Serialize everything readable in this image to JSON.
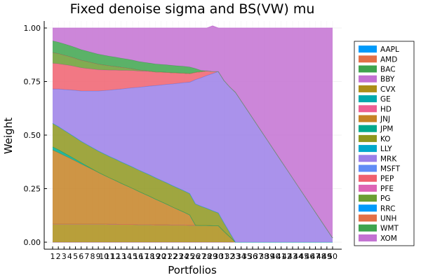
{
  "chart_data": {
    "type": "area",
    "stacked": true,
    "title": "Fixed denoise sigma and BS(VW) mu",
    "xlabel": "Portfolios",
    "ylabel": "Weight",
    "ylim": [
      0,
      1
    ],
    "yticks": [
      0.0,
      0.25,
      0.5,
      0.75,
      1.0
    ],
    "ytick_labels": [
      "0.00",
      "0.25",
      "0.50",
      "0.75",
      "1.00"
    ],
    "x": [
      1,
      2,
      3,
      4,
      5,
      6,
      7,
      8,
      9,
      10,
      11,
      12,
      13,
      14,
      15,
      16,
      17,
      18,
      19,
      20,
      21,
      22,
      23,
      24,
      25,
      26,
      27,
      28,
      29,
      30,
      31,
      32,
      33,
      34,
      35,
      36,
      37,
      38,
      39,
      40,
      41,
      42,
      43,
      44,
      45,
      46,
      47,
      48,
      49,
      50
    ],
    "grid": true,
    "legend_position": "right",
    "series": [
      {
        "name": "AAPL",
        "color": "#009AFA",
        "values": [
          0,
          0,
          0,
          0,
          0,
          0,
          0,
          0,
          0,
          0,
          0,
          0,
          0,
          0,
          0,
          0,
          0,
          0,
          0,
          0,
          0,
          0,
          0,
          0,
          0,
          0,
          0,
          0,
          0,
          0,
          0,
          0,
          0,
          0,
          0,
          0,
          0,
          0,
          0,
          0,
          0,
          0,
          0,
          0,
          0,
          0,
          0,
          0,
          0,
          0
        ]
      },
      {
        "name": "AMD",
        "color": "#E36F47",
        "values": [
          0,
          0,
          0,
          0,
          0,
          0,
          0,
          0,
          0,
          0,
          0,
          0,
          0,
          0,
          0,
          0,
          0,
          0,
          0,
          0,
          0,
          0,
          0,
          0,
          0,
          0,
          0,
          0,
          0,
          0,
          0,
          0,
          0,
          0,
          0,
          0,
          0,
          0,
          0,
          0,
          0,
          0,
          0,
          0,
          0,
          0,
          0,
          0,
          0,
          0
        ]
      },
      {
        "name": "BAC",
        "color": "#3EA44E",
        "values": [
          0,
          0,
          0,
          0,
          0,
          0,
          0,
          0,
          0,
          0,
          0,
          0,
          0,
          0,
          0,
          0,
          0,
          0,
          0,
          0,
          0,
          0,
          0,
          0,
          0,
          0,
          0,
          0,
          0,
          0,
          0,
          0,
          0,
          0,
          0,
          0,
          0,
          0,
          0,
          0,
          0,
          0,
          0,
          0,
          0,
          0,
          0,
          0,
          0,
          0
        ]
      },
      {
        "name": "BBY",
        "color": "#C371D2",
        "values": [
          0,
          0,
          0,
          0,
          0,
          0,
          0,
          0,
          0,
          0,
          0,
          0,
          0,
          0,
          0,
          0,
          0,
          0,
          0,
          0,
          0,
          0,
          0,
          0,
          0,
          0,
          0,
          0,
          0,
          0,
          0,
          0,
          0,
          0,
          0,
          0,
          0,
          0,
          0,
          0,
          0,
          0,
          0,
          0,
          0,
          0,
          0,
          0,
          0,
          0
        ]
      },
      {
        "name": "CVX",
        "color": "#AC8E18",
        "values": [
          0.085,
          0.085,
          0.085,
          0.085,
          0.085,
          0.085,
          0.085,
          0.085,
          0.085,
          0.085,
          0.084,
          0.084,
          0.083,
          0.083,
          0.083,
          0.082,
          0.082,
          0.082,
          0.081,
          0.081,
          0.081,
          0.08,
          0.08,
          0.08,
          0.079,
          0.079,
          0.078,
          0.078,
          0.077,
          0.077,
          0.05,
          0.025,
          0,
          0,
          0,
          0,
          0,
          0,
          0,
          0,
          0,
          0,
          0,
          0,
          0,
          0,
          0,
          0,
          0,
          0
        ]
      },
      {
        "name": "GE",
        "color": "#00A9AD",
        "values": [
          0,
          0,
          0,
          0,
          0,
          0,
          0,
          0,
          0,
          0,
          0,
          0,
          0,
          0,
          0,
          0,
          0,
          0,
          0,
          0,
          0,
          0,
          0,
          0,
          0,
          0,
          0,
          0,
          0,
          0,
          0,
          0,
          0,
          0,
          0,
          0,
          0,
          0,
          0,
          0,
          0,
          0,
          0,
          0,
          0,
          0,
          0,
          0,
          0,
          0
        ]
      },
      {
        "name": "HD",
        "color": "#ED5E93",
        "values": [
          0,
          0,
          0,
          0,
          0,
          0,
          0,
          0,
          0,
          0,
          0,
          0,
          0,
          0,
          0,
          0,
          0,
          0,
          0,
          0,
          0,
          0,
          0,
          0,
          0,
          0,
          0,
          0,
          0,
          0,
          0,
          0,
          0,
          0,
          0,
          0,
          0,
          0,
          0,
          0,
          0,
          0,
          0,
          0,
          0,
          0,
          0,
          0,
          0,
          0
        ]
      },
      {
        "name": "JNJ",
        "color": "#C68225",
        "values": [
          0.345,
          0.333,
          0.32,
          0.307,
          0.294,
          0.28,
          0.267,
          0.254,
          0.241,
          0.228,
          0.216,
          0.204,
          0.192,
          0.18,
          0.168,
          0.156,
          0.144,
          0.132,
          0.12,
          0.108,
          0.096,
          0.084,
          0.072,
          0.06,
          0.048,
          0,
          0,
          0,
          0,
          0,
          0,
          0,
          0,
          0,
          0,
          0,
          0,
          0,
          0,
          0,
          0,
          0,
          0,
          0,
          0,
          0,
          0,
          0,
          0,
          0
        ]
      },
      {
        "name": "JPM",
        "color": "#00A98D",
        "values": [
          0.015,
          0.014,
          0.012,
          0.01,
          0.008,
          0.006,
          0.004,
          0.002,
          0,
          0,
          0,
          0,
          0,
          0,
          0,
          0,
          0,
          0,
          0,
          0,
          0,
          0,
          0,
          0,
          0,
          0,
          0,
          0,
          0,
          0,
          0,
          0,
          0,
          0,
          0,
          0,
          0,
          0,
          0,
          0,
          0,
          0,
          0,
          0,
          0,
          0,
          0,
          0,
          0,
          0
        ]
      },
      {
        "name": "KO",
        "color": "#8E971E",
        "values": [
          0.11,
          0.108,
          0.106,
          0.104,
          0.102,
          0.1,
          0.1,
          0.1,
          0.1,
          0.1,
          0.1,
          0.1,
          0.1,
          0.1,
          0.1,
          0.1,
          0.1,
          0.1,
          0.1,
          0.1,
          0.1,
          0.1,
          0.1,
          0.1,
          0.1,
          0.1,
          0.09,
          0.08,
          0.07,
          0.06,
          0.04,
          0.02,
          0,
          0,
          0,
          0,
          0,
          0,
          0,
          0,
          0,
          0,
          0,
          0,
          0,
          0,
          0,
          0,
          0,
          0
        ]
      },
      {
        "name": "LLY",
        "color": "#00A8CB",
        "values": [
          0,
          0,
          0,
          0,
          0,
          0,
          0,
          0,
          0,
          0,
          0,
          0,
          0,
          0,
          0,
          0,
          0,
          0,
          0,
          0,
          0,
          0,
          0,
          0,
          0,
          0,
          0,
          0,
          0,
          0,
          0,
          0,
          0,
          0,
          0,
          0,
          0,
          0,
          0,
          0,
          0,
          0,
          0,
          0,
          0,
          0,
          0,
          0,
          0,
          0
        ]
      },
      {
        "name": "MRK",
        "color": "#9B7FE8",
        "values": [
          0.16,
          0.175,
          0.19,
          0.205,
          0.22,
          0.235,
          0.25,
          0.265,
          0.28,
          0.295,
          0.31,
          0.325,
          0.34,
          0.355,
          0.37,
          0.385,
          0.4,
          0.415,
          0.43,
          0.445,
          0.46,
          0.475,
          0.49,
          0.505,
          0.52,
          0.58,
          0.6,
          0.62,
          0.64,
          0.66,
          0.665,
          0.68,
          0.7,
          0.66,
          0.62,
          0.58,
          0.54,
          0.5,
          0.46,
          0.42,
          0.38,
          0.34,
          0.3,
          0.26,
          0.22,
          0.18,
          0.14,
          0.1,
          0.06,
          0.02
        ]
      },
      {
        "name": "MSFT",
        "color": "#608CF6",
        "values": [
          0,
          0,
          0,
          0,
          0,
          0,
          0,
          0,
          0,
          0,
          0,
          0,
          0,
          0,
          0,
          0,
          0,
          0,
          0,
          0,
          0,
          0,
          0,
          0,
          0,
          0,
          0,
          0,
          0,
          0,
          0,
          0,
          0,
          0,
          0,
          0,
          0,
          0,
          0,
          0,
          0,
          0,
          0,
          0,
          0,
          0,
          0,
          0,
          0,
          0
        ]
      },
      {
        "name": "PEP",
        "color": "#F0606F",
        "values": [
          0.12,
          0.118,
          0.116,
          0.114,
          0.111,
          0.108,
          0.105,
          0.102,
          0.099,
          0.096,
          0.093,
          0.09,
          0.087,
          0.084,
          0.08,
          0.076,
          0.072,
          0.068,
          0.064,
          0.06,
          0.056,
          0.052,
          0.048,
          0.044,
          0.04,
          0.034,
          0.028,
          0.022,
          0.01,
          0,
          0,
          0,
          0,
          0,
          0,
          0,
          0,
          0,
          0,
          0,
          0,
          0,
          0,
          0,
          0,
          0,
          0,
          0,
          0,
          0
        ]
      },
      {
        "name": "PFE",
        "color": "#DD64B5",
        "values": [
          0,
          0,
          0,
          0,
          0,
          0,
          0,
          0,
          0,
          0,
          0,
          0,
          0,
          0,
          0,
          0,
          0,
          0,
          0,
          0,
          0,
          0,
          0,
          0,
          0,
          0,
          0,
          0,
          0,
          0,
          0,
          0,
          0,
          0,
          0,
          0,
          0,
          0,
          0,
          0,
          0,
          0,
          0,
          0,
          0,
          0,
          0,
          0,
          0,
          0
        ]
      },
      {
        "name": "PG",
        "color": "#6B9E32",
        "values": [
          0.05,
          0.047,
          0.044,
          0.041,
          0.038,
          0.035,
          0.032,
          0.029,
          0.026,
          0.023,
          0.02,
          0.017,
          0.014,
          0.011,
          0.008,
          0.005,
          0.003,
          0.001,
          0,
          0,
          0,
          0,
          0,
          0,
          0,
          0,
          0,
          0,
          0,
          0,
          0,
          0,
          0,
          0,
          0,
          0,
          0,
          0,
          0,
          0,
          0,
          0,
          0,
          0,
          0,
          0,
          0,
          0,
          0,
          0
        ]
      },
      {
        "name": "RRC",
        "color": "#009AFA",
        "values": [
          0,
          0,
          0,
          0,
          0,
          0,
          0,
          0,
          0,
          0,
          0,
          0,
          0,
          0,
          0,
          0,
          0,
          0,
          0,
          0,
          0,
          0,
          0,
          0,
          0,
          0,
          0,
          0,
          0,
          0,
          0,
          0,
          0,
          0,
          0,
          0,
          0,
          0,
          0,
          0,
          0,
          0,
          0,
          0,
          0,
          0,
          0,
          0,
          0,
          0
        ]
      },
      {
        "name": "UNH",
        "color": "#E36F47",
        "values": [
          0,
          0,
          0,
          0,
          0,
          0,
          0,
          0,
          0,
          0,
          0,
          0,
          0,
          0,
          0,
          0,
          0,
          0,
          0,
          0,
          0,
          0,
          0,
          0,
          0,
          0,
          0,
          0,
          0,
          0,
          0,
          0,
          0,
          0,
          0,
          0,
          0,
          0,
          0,
          0,
          0,
          0,
          0,
          0,
          0,
          0,
          0,
          0,
          0,
          0
        ]
      },
      {
        "name": "WMT",
        "color": "#3EA44E",
        "values": [
          0.055,
          0.054,
          0.053,
          0.052,
          0.051,
          0.05,
          0.049,
          0.048,
          0.047,
          0.046,
          0.045,
          0.044,
          0.043,
          0.042,
          0.041,
          0.04,
          0.039,
          0.038,
          0.037,
          0.036,
          0.035,
          0.034,
          0.033,
          0.032,
          0.031,
          0.018,
          0.006,
          0,
          0,
          0,
          0,
          0,
          0,
          0,
          0,
          0,
          0,
          0,
          0,
          0,
          0,
          0,
          0,
          0,
          0,
          0,
          0,
          0,
          0,
          0
        ]
      },
      {
        "name": "XOM",
        "color": "#C371D2",
        "values": [
          0.06,
          0.066,
          0.074,
          0.082,
          0.091,
          0.101,
          0.108,
          0.115,
          0.122,
          0.127,
          0.132,
          0.136,
          0.141,
          0.145,
          0.15,
          0.156,
          0.16,
          0.164,
          0.168,
          0.17,
          0.172,
          0.175,
          0.177,
          0.179,
          0.182,
          0.189,
          0.198,
          0.2,
          0.213,
          0.203,
          0.245,
          0.275,
          0.3,
          0.34,
          0.38,
          0.42,
          0.46,
          0.5,
          0.54,
          0.58,
          0.62,
          0.66,
          0.7,
          0.74,
          0.78,
          0.82,
          0.86,
          0.9,
          0.94,
          0.98
        ]
      }
    ]
  }
}
